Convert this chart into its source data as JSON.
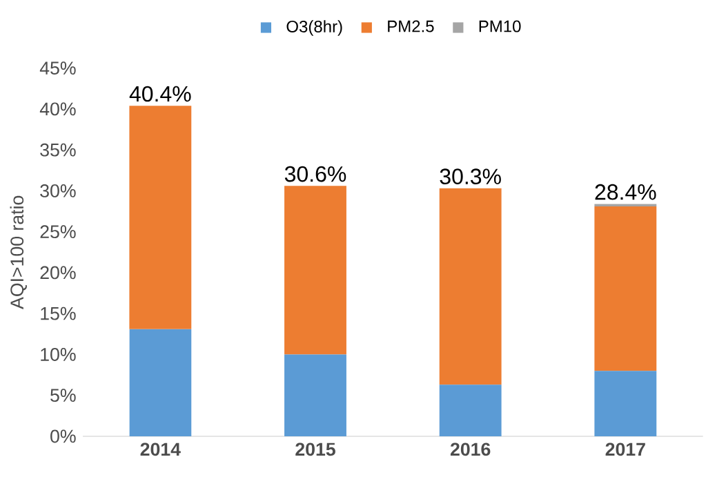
{
  "chart_data": {
    "type": "bar",
    "stacked": true,
    "ylabel": "AQI>100 ratio",
    "categories": [
      "2014",
      "2015",
      "2016",
      "2017"
    ],
    "series": [
      {
        "name": "O3(8hr)",
        "color": "#5b9bd5",
        "values": [
          13.1,
          10.0,
          6.3,
          8.0
        ]
      },
      {
        "name": "PM2.5",
        "color": "#ed7d31",
        "values": [
          27.3,
          20.6,
          24.0,
          20.1
        ]
      },
      {
        "name": "PM10",
        "color": "#a5a5a5",
        "values": [
          0,
          0,
          0,
          0.3
        ]
      }
    ],
    "totals": [
      "40.4%",
      "30.6%",
      "30.3%",
      "28.4%"
    ],
    "ylim": [
      0,
      45
    ],
    "yticks": [
      {
        "value": 0,
        "label": "0%"
      },
      {
        "value": 5,
        "label": "5%"
      },
      {
        "value": 10,
        "label": "10%"
      },
      {
        "value": 15,
        "label": "15%"
      },
      {
        "value": 20,
        "label": "20%"
      },
      {
        "value": 25,
        "label": "25%"
      },
      {
        "value": 30,
        "label": "30%"
      },
      {
        "value": 35,
        "label": "35%"
      },
      {
        "value": 40,
        "label": "40%"
      },
      {
        "value": 45,
        "label": "45%"
      }
    ],
    "grid": false,
    "legend": "top"
  }
}
